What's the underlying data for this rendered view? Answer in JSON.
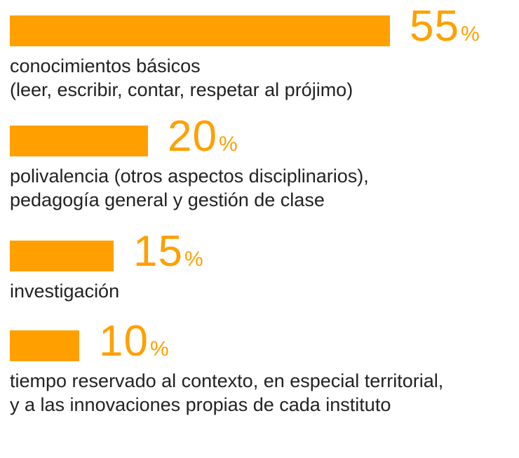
{
  "chart_data": {
    "type": "bar",
    "orientation": "horizontal",
    "title": "",
    "xlabel": "",
    "ylabel": "",
    "xlim": [
      0,
      55
    ],
    "grid": false,
    "unit": "%",
    "bar_color": "#FFA000",
    "text_color": "#222222",
    "categories": [
      [
        "conocimientos básicos",
        "(leer, escribir, contar, respetar al prójimo)"
      ],
      [
        "polivalencia (otros aspectos disciplinarios),",
        "pedagogía general y gestión de clase"
      ],
      [
        "investigación"
      ],
      [
        "tiempo reservado al contexto, en especial territorial,",
        "y a las innovaciones propias de cada instituto"
      ]
    ],
    "values": [
      55,
      20,
      15,
      10
    ],
    "value_labels": [
      "55",
      "20",
      "15",
      "10"
    ]
  }
}
